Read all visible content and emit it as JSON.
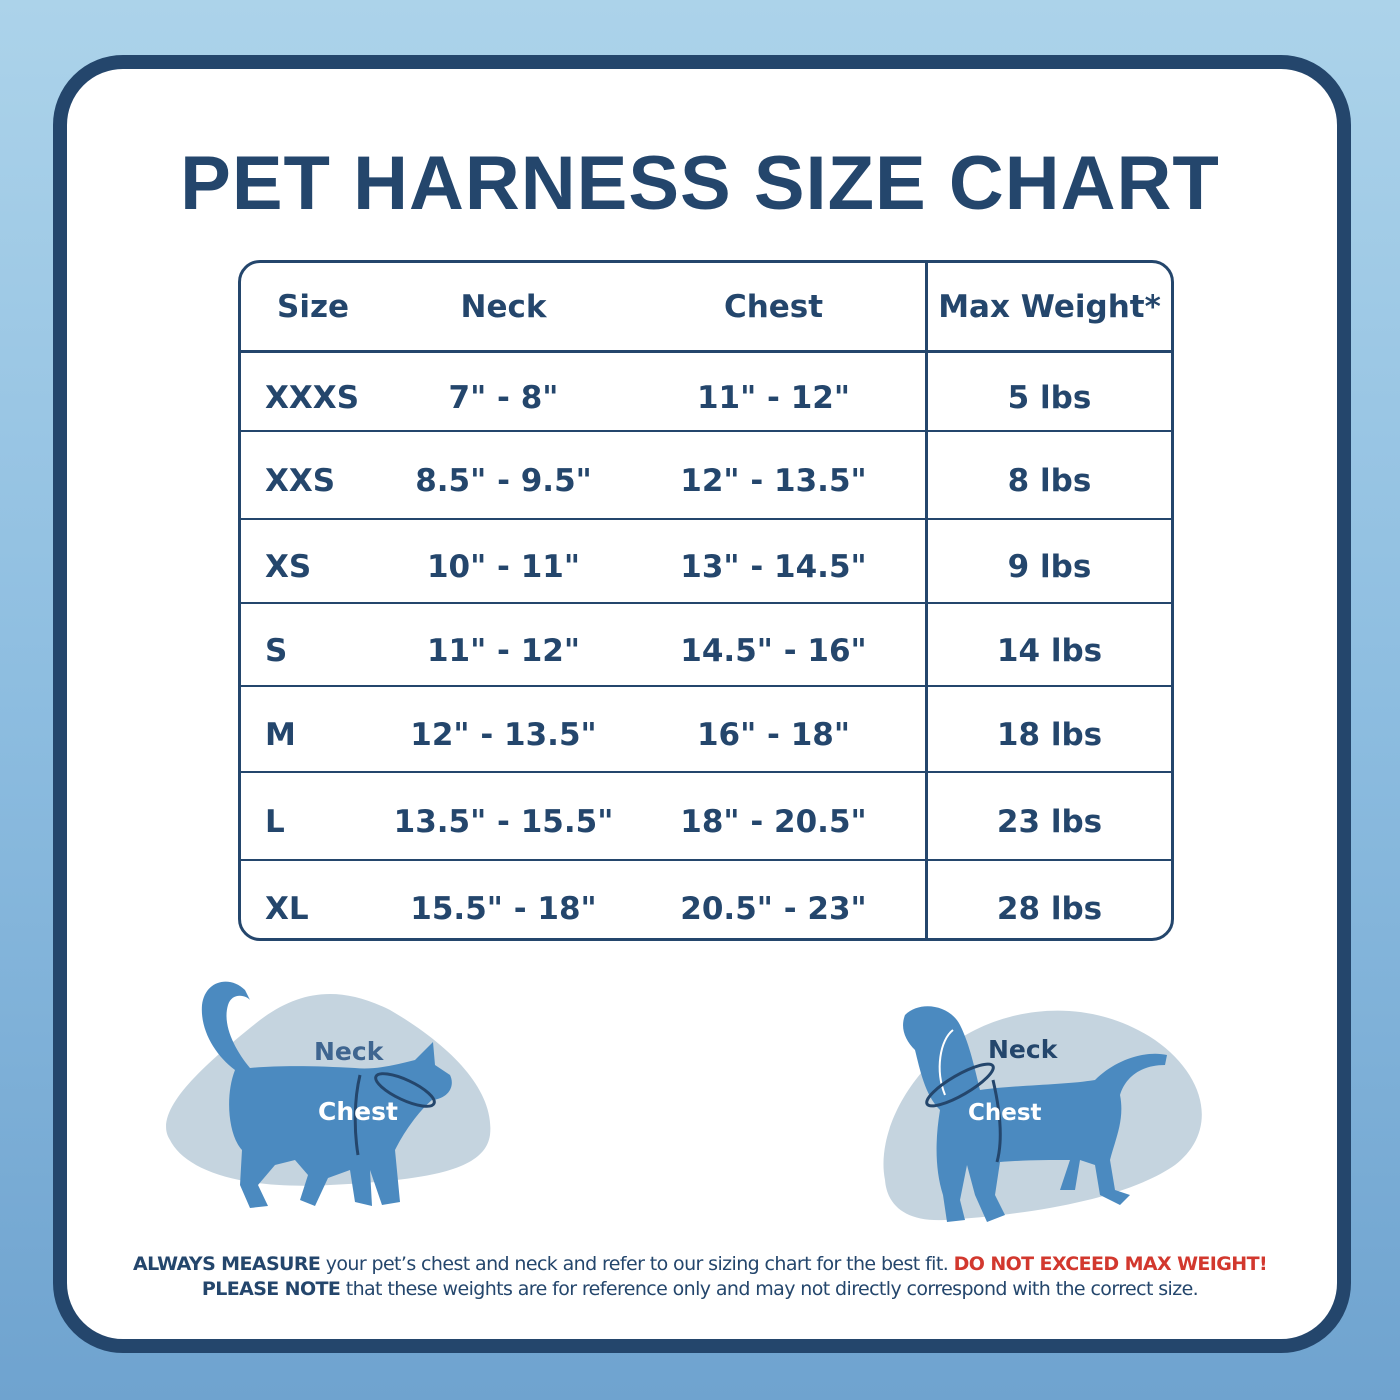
{
  "title": "PET HARNESS SIZE CHART",
  "table": {
    "headers": [
      "Size",
      "Neck",
      "Chest",
      "Max Weight*"
    ],
    "rows": [
      [
        "XXXS",
        "7\" - 8\"",
        "11\" - 12\"",
        "5 lbs"
      ],
      [
        "XXS",
        "8.5\" - 9.5\"",
        "12\" - 13.5\"",
        "8 lbs"
      ],
      [
        "XS",
        "10\" - 11\"",
        "13\" - 14.5\"",
        "9 lbs"
      ],
      [
        "S",
        "11\" - 12\"",
        "14.5\" - 16\"",
        "14 lbs"
      ],
      [
        "M",
        "12\" - 13.5\"",
        "16\" - 18\"",
        "18 lbs"
      ],
      [
        "L",
        "13.5\" - 15.5\"",
        "18\" - 20.5\"",
        "23 lbs"
      ],
      [
        "XL",
        "15.5\" - 18\"",
        "20.5\" - 23\"",
        "28 lbs"
      ]
    ]
  },
  "cat": {
    "neck_label": "Neck",
    "chest_label": "Chest"
  },
  "dog": {
    "neck_label": "Neck",
    "chest_label": "Chest"
  },
  "footer": {
    "line1_bold": "ALWAYS MEASURE",
    "line1_text": " your pet’s chest and neck and refer  to our sizing chart for the best fit. ",
    "line1_warning": "DO NOT EXCEED MAX WEIGHT!",
    "line2_bold": "PLEASE NOTE",
    "line2_text": " that these weights are for reference only and may not directly correspond with the correct size."
  },
  "colors": {
    "navy": "#24466c",
    "pet_blue": "#4b8ac0",
    "blob": "#c5d4df",
    "warning": "#d2382e"
  }
}
